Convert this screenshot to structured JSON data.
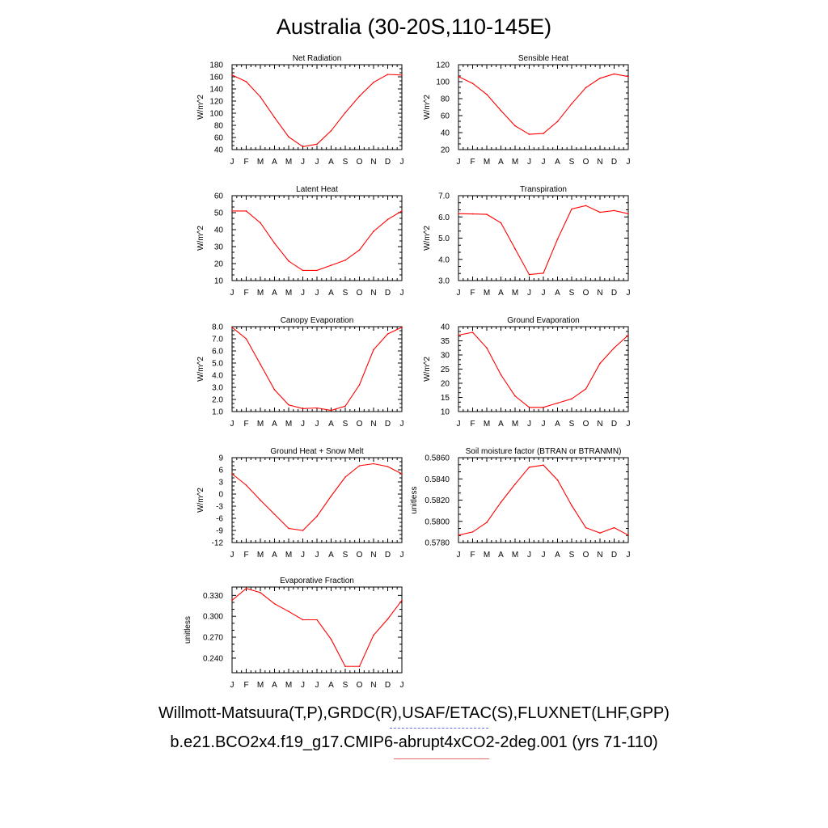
{
  "title": "Australia (30-20S,110-145E)",
  "footer": {
    "obs_line": "Willmott-Matsuura(T,P),GRDC(R),USAF/ETAC(S),FLUXNET(LHF,GPP)",
    "model_line": "b.e21.BCO2x4.f19_g17.CMIP6-abrupt4xCO2-2deg.001 (yrs 71-110)"
  },
  "colors": {
    "series": "#ff0000",
    "axis": "#000000",
    "obs_legend": "#6a6ae6",
    "model_legend": "#e76a6a"
  },
  "chart_data": [
    {
      "type": "line",
      "title": "Net Radiation",
      "ylabel": "W/m^2",
      "x": [
        "J",
        "F",
        "M",
        "A",
        "M",
        "J",
        "J",
        "A",
        "S",
        "O",
        "N",
        "D",
        "J"
      ],
      "ylim": [
        40,
        180
      ],
      "yticks": [
        40,
        60,
        80,
        100,
        120,
        140,
        160,
        180
      ],
      "ytick_labels": [
        "40",
        "60",
        "80",
        "100",
        "120",
        "140",
        "160",
        "180"
      ],
      "series": [
        {
          "values": [
            163,
            152,
            127,
            93,
            61,
            45,
            49,
            71,
            101,
            128,
            151,
            164,
            163
          ]
        }
      ]
    },
    {
      "type": "line",
      "title": "Sensible Heat",
      "ylabel": "W/m^2",
      "x": [
        "J",
        "F",
        "M",
        "A",
        "M",
        "J",
        "J",
        "A",
        "S",
        "O",
        "N",
        "D",
        "J"
      ],
      "ylim": [
        20,
        120
      ],
      "yticks": [
        20,
        40,
        60,
        80,
        100,
        120
      ],
      "ytick_labels": [
        "20",
        "40",
        "60",
        "80",
        "100",
        "120"
      ],
      "series": [
        {
          "values": [
            106,
            98,
            85,
            66,
            48,
            38,
            39,
            53,
            74,
            93,
            104,
            109,
            106
          ]
        }
      ]
    },
    {
      "type": "line",
      "title": "Latent Heat",
      "ylabel": "W/m^2",
      "x": [
        "J",
        "F",
        "M",
        "A",
        "M",
        "J",
        "J",
        "A",
        "S",
        "O",
        "N",
        "D",
        "J"
      ],
      "ylim": [
        10,
        60
      ],
      "yticks": [
        10,
        20,
        30,
        40,
        50,
        60
      ],
      "ytick_labels": [
        "10",
        "20",
        "30",
        "40",
        "50",
        "60"
      ],
      "series": [
        {
          "values": [
            51,
            51,
            44,
            32,
            21.5,
            16,
            16,
            19,
            22,
            28,
            39,
            46,
            51
          ]
        }
      ]
    },
    {
      "type": "line",
      "title": "Transpiration",
      "ylabel": "W/m^2",
      "x": [
        "J",
        "F",
        "M",
        "A",
        "M",
        "J",
        "J",
        "A",
        "S",
        "O",
        "N",
        "D",
        "J"
      ],
      "ylim": [
        3.0,
        7.0
      ],
      "yticks": [
        3,
        4,
        5,
        6,
        7
      ],
      "ytick_labels": [
        "3.0",
        "4.0",
        "5.0",
        "6.0",
        "7.0"
      ],
      "series": [
        {
          "values": [
            6.15,
            6.14,
            6.12,
            5.72,
            4.5,
            3.28,
            3.35,
            4.95,
            6.37,
            6.53,
            6.22,
            6.3,
            6.15
          ]
        }
      ]
    },
    {
      "type": "line",
      "title": "Canopy Evaporation",
      "ylabel": "W/m^2",
      "x": [
        "J",
        "F",
        "M",
        "A",
        "M",
        "J",
        "J",
        "A",
        "S",
        "O",
        "N",
        "D",
        "J"
      ],
      "ylim": [
        1.0,
        8.0
      ],
      "yticks": [
        1,
        2,
        3,
        4,
        5,
        6,
        7,
        8
      ],
      "ytick_labels": [
        "1.0",
        "2.0",
        "3.0",
        "4.0",
        "5.0",
        "6.0",
        "7.0",
        "8.0"
      ],
      "series": [
        {
          "values": [
            7.95,
            7.0,
            4.9,
            2.8,
            1.55,
            1.25,
            1.3,
            1.1,
            1.45,
            3.2,
            6.1,
            7.4,
            7.95
          ]
        }
      ]
    },
    {
      "type": "line",
      "title": "Ground Evaporation",
      "ylabel": "W/m^2",
      "x": [
        "J",
        "F",
        "M",
        "A",
        "M",
        "J",
        "J",
        "A",
        "S",
        "O",
        "N",
        "D",
        "J"
      ],
      "ylim": [
        10,
        40
      ],
      "yticks": [
        10,
        15,
        20,
        25,
        30,
        35,
        40
      ],
      "ytick_labels": [
        "10",
        "15",
        "20",
        "25",
        "30",
        "35",
        "40"
      ],
      "series": [
        {
          "values": [
            37,
            38,
            32.5,
            23,
            15.5,
            11.5,
            11.5,
            13,
            14.5,
            18,
            27,
            32.5,
            37
          ]
        }
      ]
    },
    {
      "type": "line",
      "title": "Ground Heat + Snow Melt",
      "ylabel": "W/m^2",
      "x": [
        "J",
        "F",
        "M",
        "A",
        "M",
        "J",
        "J",
        "A",
        "S",
        "O",
        "N",
        "D",
        "J"
      ],
      "ylim": [
        -12,
        9
      ],
      "yticks": [
        -12,
        -9,
        -6,
        -3,
        0,
        3,
        6,
        9
      ],
      "ytick_labels": [
        "-12",
        "-9",
        "-6",
        "-3",
        "0",
        "3",
        "6",
        "9"
      ],
      "series": [
        {
          "values": [
            5,
            2.2,
            -1.5,
            -5,
            -8.5,
            -9,
            -5.5,
            -0.5,
            4.2,
            7,
            7.5,
            6.8,
            5
          ]
        }
      ]
    },
    {
      "type": "line",
      "title": "Soil moisture factor (BTRAN or BTRANMN)",
      "ylabel": "unitless",
      "x": [
        "J",
        "F",
        "M",
        "A",
        "M",
        "J",
        "J",
        "A",
        "S",
        "O",
        "N",
        "D",
        "J"
      ],
      "ylim": [
        0.578,
        0.586
      ],
      "yticks": [
        0.578,
        0.58,
        0.582,
        0.584,
        0.586
      ],
      "ytick_labels": [
        "0.5780",
        "0.5800",
        "0.5820",
        "0.5840",
        "0.5860"
      ],
      "series": [
        {
          "values": [
            0.5787,
            0.579,
            0.5799,
            0.5818,
            0.5835,
            0.5851,
            0.5853,
            0.5839,
            0.5815,
            0.5794,
            0.5789,
            0.5794,
            0.5787
          ]
        }
      ]
    },
    {
      "type": "line",
      "title": "Evaporative Fraction",
      "ylabel": "unitless",
      "x": [
        "J",
        "F",
        "M",
        "A",
        "M",
        "J",
        "J",
        "A",
        "S",
        "O",
        "N",
        "D",
        "J"
      ],
      "ylim": [
        0.219,
        0.342
      ],
      "yticks": [
        0.24,
        0.27,
        0.3,
        0.33
      ],
      "ytick_labels": [
        "0.240",
        "0.270",
        "0.300",
        "0.330"
      ],
      "series": [
        {
          "values": [
            0.323,
            0.34,
            0.334,
            0.318,
            0.307,
            0.295,
            0.295,
            0.267,
            0.228,
            0.228,
            0.273,
            0.296,
            0.323
          ]
        }
      ]
    }
  ]
}
